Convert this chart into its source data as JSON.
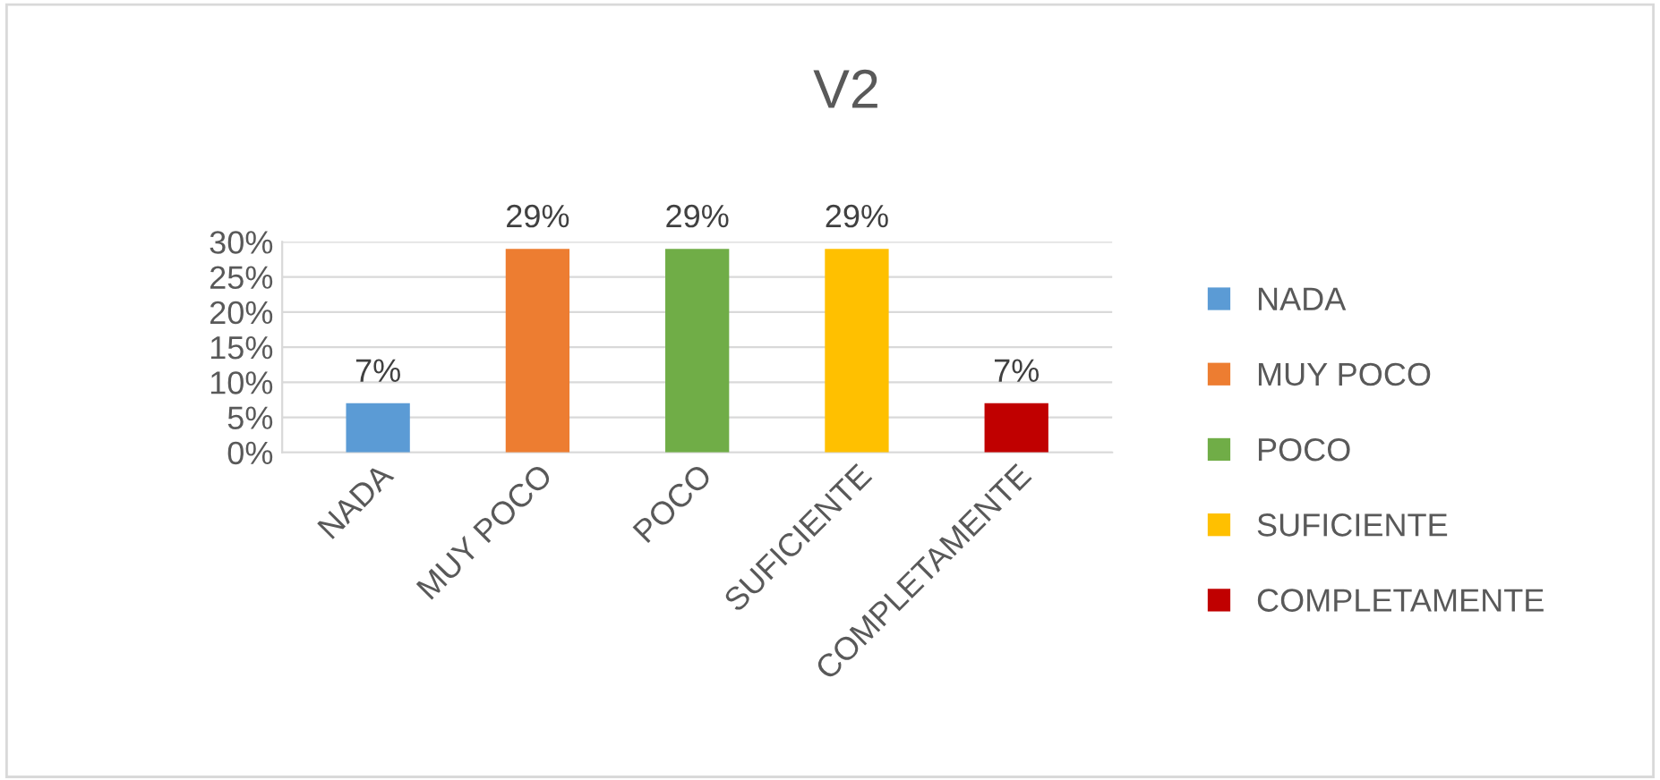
{
  "chart_data": {
    "type": "bar",
    "title": "V2",
    "categories": [
      "NADA",
      "MUY POCO",
      "POCO",
      "SUFICIENTE",
      "COMPLETAMENTE"
    ],
    "series": [
      {
        "name": "NADA",
        "color": "#5b9bd5",
        "values": [
          7,
          null,
          null,
          null,
          null
        ],
        "value_labels": [
          "7%",
          null,
          null,
          null,
          null
        ]
      },
      {
        "name": "MUY POCO",
        "color": "#ed7d31",
        "values": [
          null,
          29,
          null,
          null,
          null
        ],
        "value_labels": [
          null,
          "29%",
          null,
          null,
          null
        ]
      },
      {
        "name": "POCO",
        "color": "#70ad47",
        "values": [
          null,
          null,
          29,
          null,
          null
        ],
        "value_labels": [
          null,
          null,
          "29%",
          null,
          null
        ]
      },
      {
        "name": "SUFICIENTE",
        "color": "#ffc000",
        "values": [
          null,
          null,
          null,
          29,
          null
        ],
        "value_labels": [
          null,
          null,
          null,
          "29%",
          null
        ]
      },
      {
        "name": "COMPLETAMENTE",
        "color": "#c00000",
        "values": [
          null,
          null,
          null,
          null,
          7
        ],
        "value_labels": [
          null,
          null,
          null,
          null,
          "7%"
        ]
      }
    ],
    "ylim": [
      0,
      30
    ],
    "yticks": [
      {
        "value": 0,
        "label": "0%"
      },
      {
        "value": 5,
        "label": "5%"
      },
      {
        "value": 10,
        "label": "10%"
      },
      {
        "value": 15,
        "label": "15%"
      },
      {
        "value": 20,
        "label": "20%"
      },
      {
        "value": 25,
        "label": "25%"
      },
      {
        "value": 30,
        "label": "30%"
      }
    ],
    "grid": "y",
    "legend": "right"
  }
}
